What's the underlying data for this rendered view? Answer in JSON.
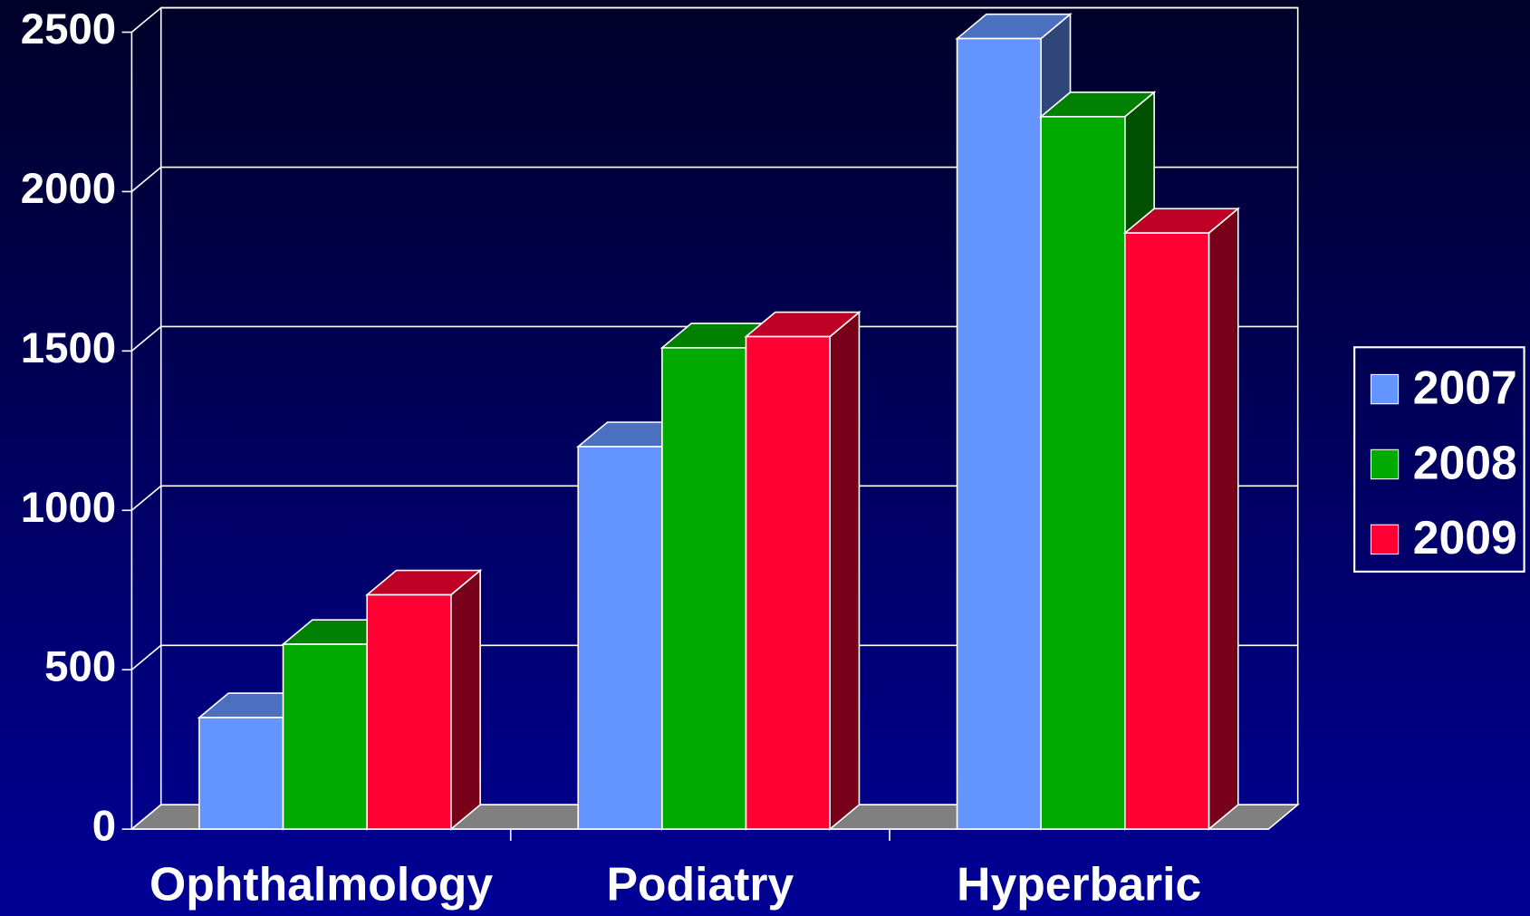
{
  "chart_data": {
    "type": "bar3d",
    "categories": [
      "Ophthalmology",
      "Podiatry",
      "Hyperbaric"
    ],
    "series": [
      {
        "name": "2007",
        "color": "#6495ff",
        "values": [
          350,
          1200,
          2480
        ]
      },
      {
        "name": "2008",
        "color": "#00aa00",
        "values": [
          580,
          1510,
          2235
        ]
      },
      {
        "name": "2009",
        "color": "#ff0033",
        "values": [
          735,
          1545,
          1870
        ]
      }
    ],
    "ylim": [
      0,
      2500
    ],
    "yticks": [
      0,
      500,
      1000,
      1500,
      2000,
      2500
    ],
    "grid": true,
    "legend": "right"
  }
}
